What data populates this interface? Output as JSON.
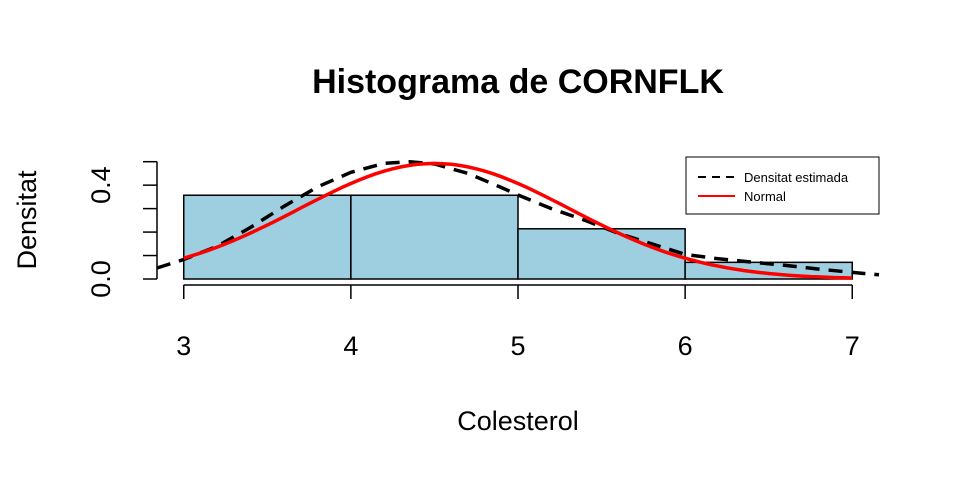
{
  "chart_data": {
    "type": "bar",
    "title": "Histograma de CORNFLK",
    "xlabel": "Colesterol",
    "ylabel": "Densitat",
    "xlim": [
      2.84,
      7.16
    ],
    "ylim": [
      0.0,
      0.52
    ],
    "x_ticks": [
      3,
      4,
      5,
      6,
      7
    ],
    "y_ticks": [
      0.0,
      0.1,
      0.2,
      0.3,
      0.4,
      0.5
    ],
    "y_tick_labels": [
      {
        "value": 0.0,
        "label": "0.0"
      },
      {
        "value": 0.4,
        "label": "0.4"
      }
    ],
    "bins": [
      {
        "from": 3,
        "to": 4,
        "density": 0.357
      },
      {
        "from": 4,
        "to": 5,
        "density": 0.357
      },
      {
        "from": 5,
        "to": 6,
        "density": 0.214
      },
      {
        "from": 6,
        "to": 7,
        "density": 0.071
      }
    ],
    "bar_fill": "#9ecfe0",
    "series": [
      {
        "name": "Densitat estimada",
        "style": "dashed",
        "color": "#000000",
        "points": [
          [
            2.84,
            0.047
          ],
          [
            3.0,
            0.083
          ],
          [
            3.2,
            0.14
          ],
          [
            3.4,
            0.22
          ],
          [
            3.6,
            0.31
          ],
          [
            3.8,
            0.392
          ],
          [
            4.0,
            0.455
          ],
          [
            4.2,
            0.493
          ],
          [
            4.35,
            0.5
          ],
          [
            4.5,
            0.49
          ],
          [
            4.7,
            0.45
          ],
          [
            4.9,
            0.39
          ],
          [
            5.0,
            0.358
          ],
          [
            5.2,
            0.3
          ],
          [
            5.4,
            0.25
          ],
          [
            5.6,
            0.195
          ],
          [
            5.8,
            0.15
          ],
          [
            6.0,
            0.105
          ],
          [
            6.2,
            0.086
          ],
          [
            6.4,
            0.072
          ],
          [
            6.6,
            0.058
          ],
          [
            6.8,
            0.042
          ],
          [
            7.0,
            0.028
          ],
          [
            7.16,
            0.018
          ]
        ]
      },
      {
        "name": "Normal",
        "style": "solid",
        "color": "#ff0000",
        "mean": 4.5,
        "sd": 0.81
      }
    ],
    "legend": {
      "position": "top-right",
      "entries": [
        {
          "label": "Densitat estimada",
          "style": "dashed",
          "color": "#000000"
        },
        {
          "label": "Normal",
          "style": "solid",
          "color": "#ff0000"
        }
      ]
    },
    "grid": false
  }
}
